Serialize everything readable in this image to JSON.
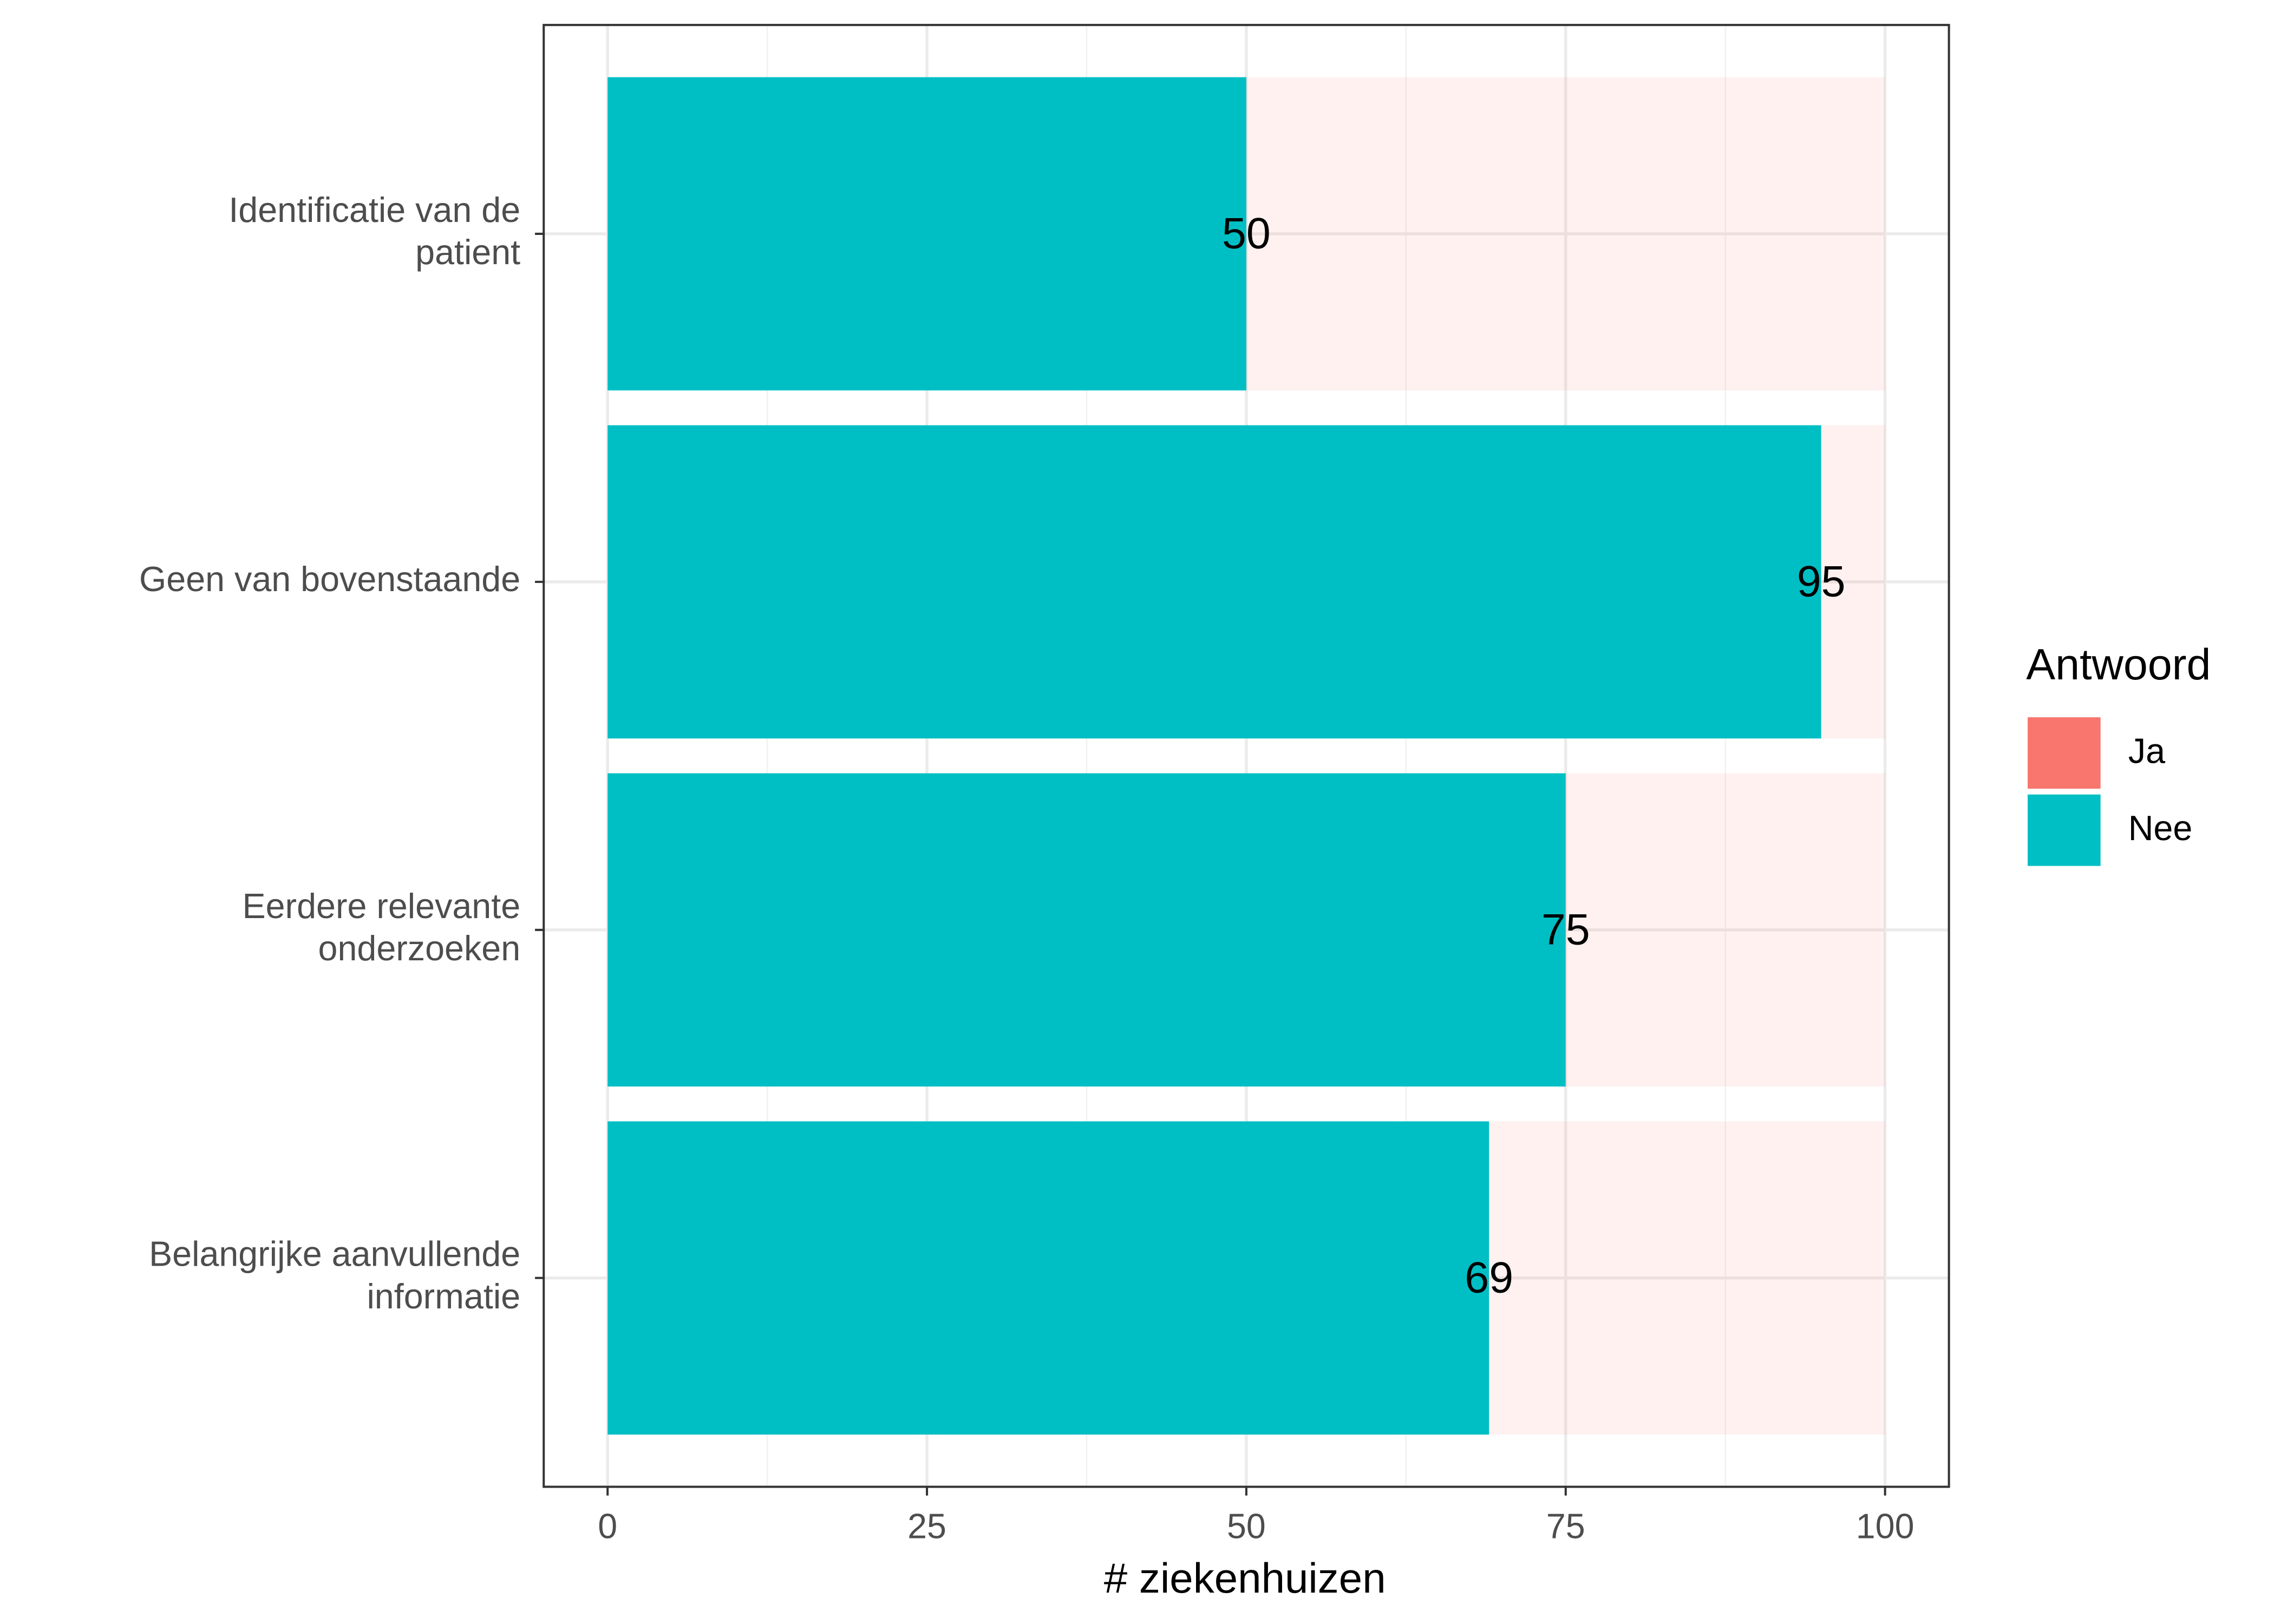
{
  "chart_data": {
    "type": "stacked_barh",
    "x_label": "# ziekenhuizen",
    "legend_title": "Antwoord",
    "categories": [
      "Identificatie van de\npatient",
      "Geen van bovenstaande",
      "Eerdere relevante\nonderzoeken",
      "Belangrijke aanvullende\ninformatie"
    ],
    "series": [
      {
        "name": "Ja",
        "color": "#F8766D",
        "opacity": 0.1,
        "values": [
          50,
          5,
          25,
          31
        ]
      },
      {
        "name": "Nee",
        "color": "#00BFC4",
        "opacity": 1,
        "values": [
          50,
          95,
          75,
          69
        ]
      }
    ],
    "labelled_series": 1,
    "xlim": [
      -5,
      105
    ],
    "xticks": [
      0,
      25,
      50,
      75,
      100
    ],
    "grid": true,
    "legend": "right"
  }
}
